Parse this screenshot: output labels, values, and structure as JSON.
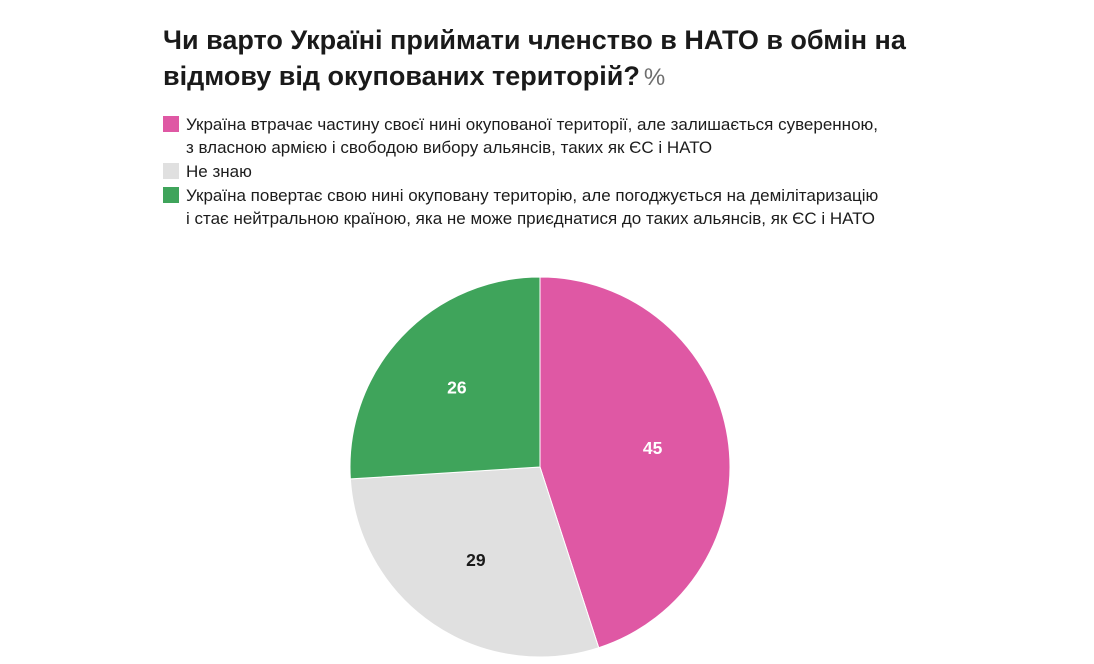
{
  "title": {
    "text": "Чи варто Україні приймати членство в НАТО в обмін на відмову від окупованих територій?",
    "suffix": "%"
  },
  "chart_data": {
    "type": "pie",
    "unit": "%",
    "start_angle_deg": 0,
    "direction": "clockwise",
    "legend_position": "top-left",
    "slices": [
      {
        "label": "Україна втрачає частину своєї нині окупованої території, але залишається суверенною, з власною армією і свободою вибору альянсів, таких як ЄС і НАТО",
        "value": 45,
        "color": "#df58a4",
        "value_label_color": "#ffffff"
      },
      {
        "label": "Не знаю",
        "value": 29,
        "color": "#e0e0e0",
        "value_label_color": "#1a1a1a"
      },
      {
        "label": "Україна повертає свою нині окуповану територію, але погоджується на демілітаризацію і стає нейтральною країною, яка не може приєднатися до таких альянсів, як ЄС і НАТО",
        "value": 26,
        "color": "#3fa45b",
        "value_label_color": "#ffffff"
      }
    ]
  }
}
